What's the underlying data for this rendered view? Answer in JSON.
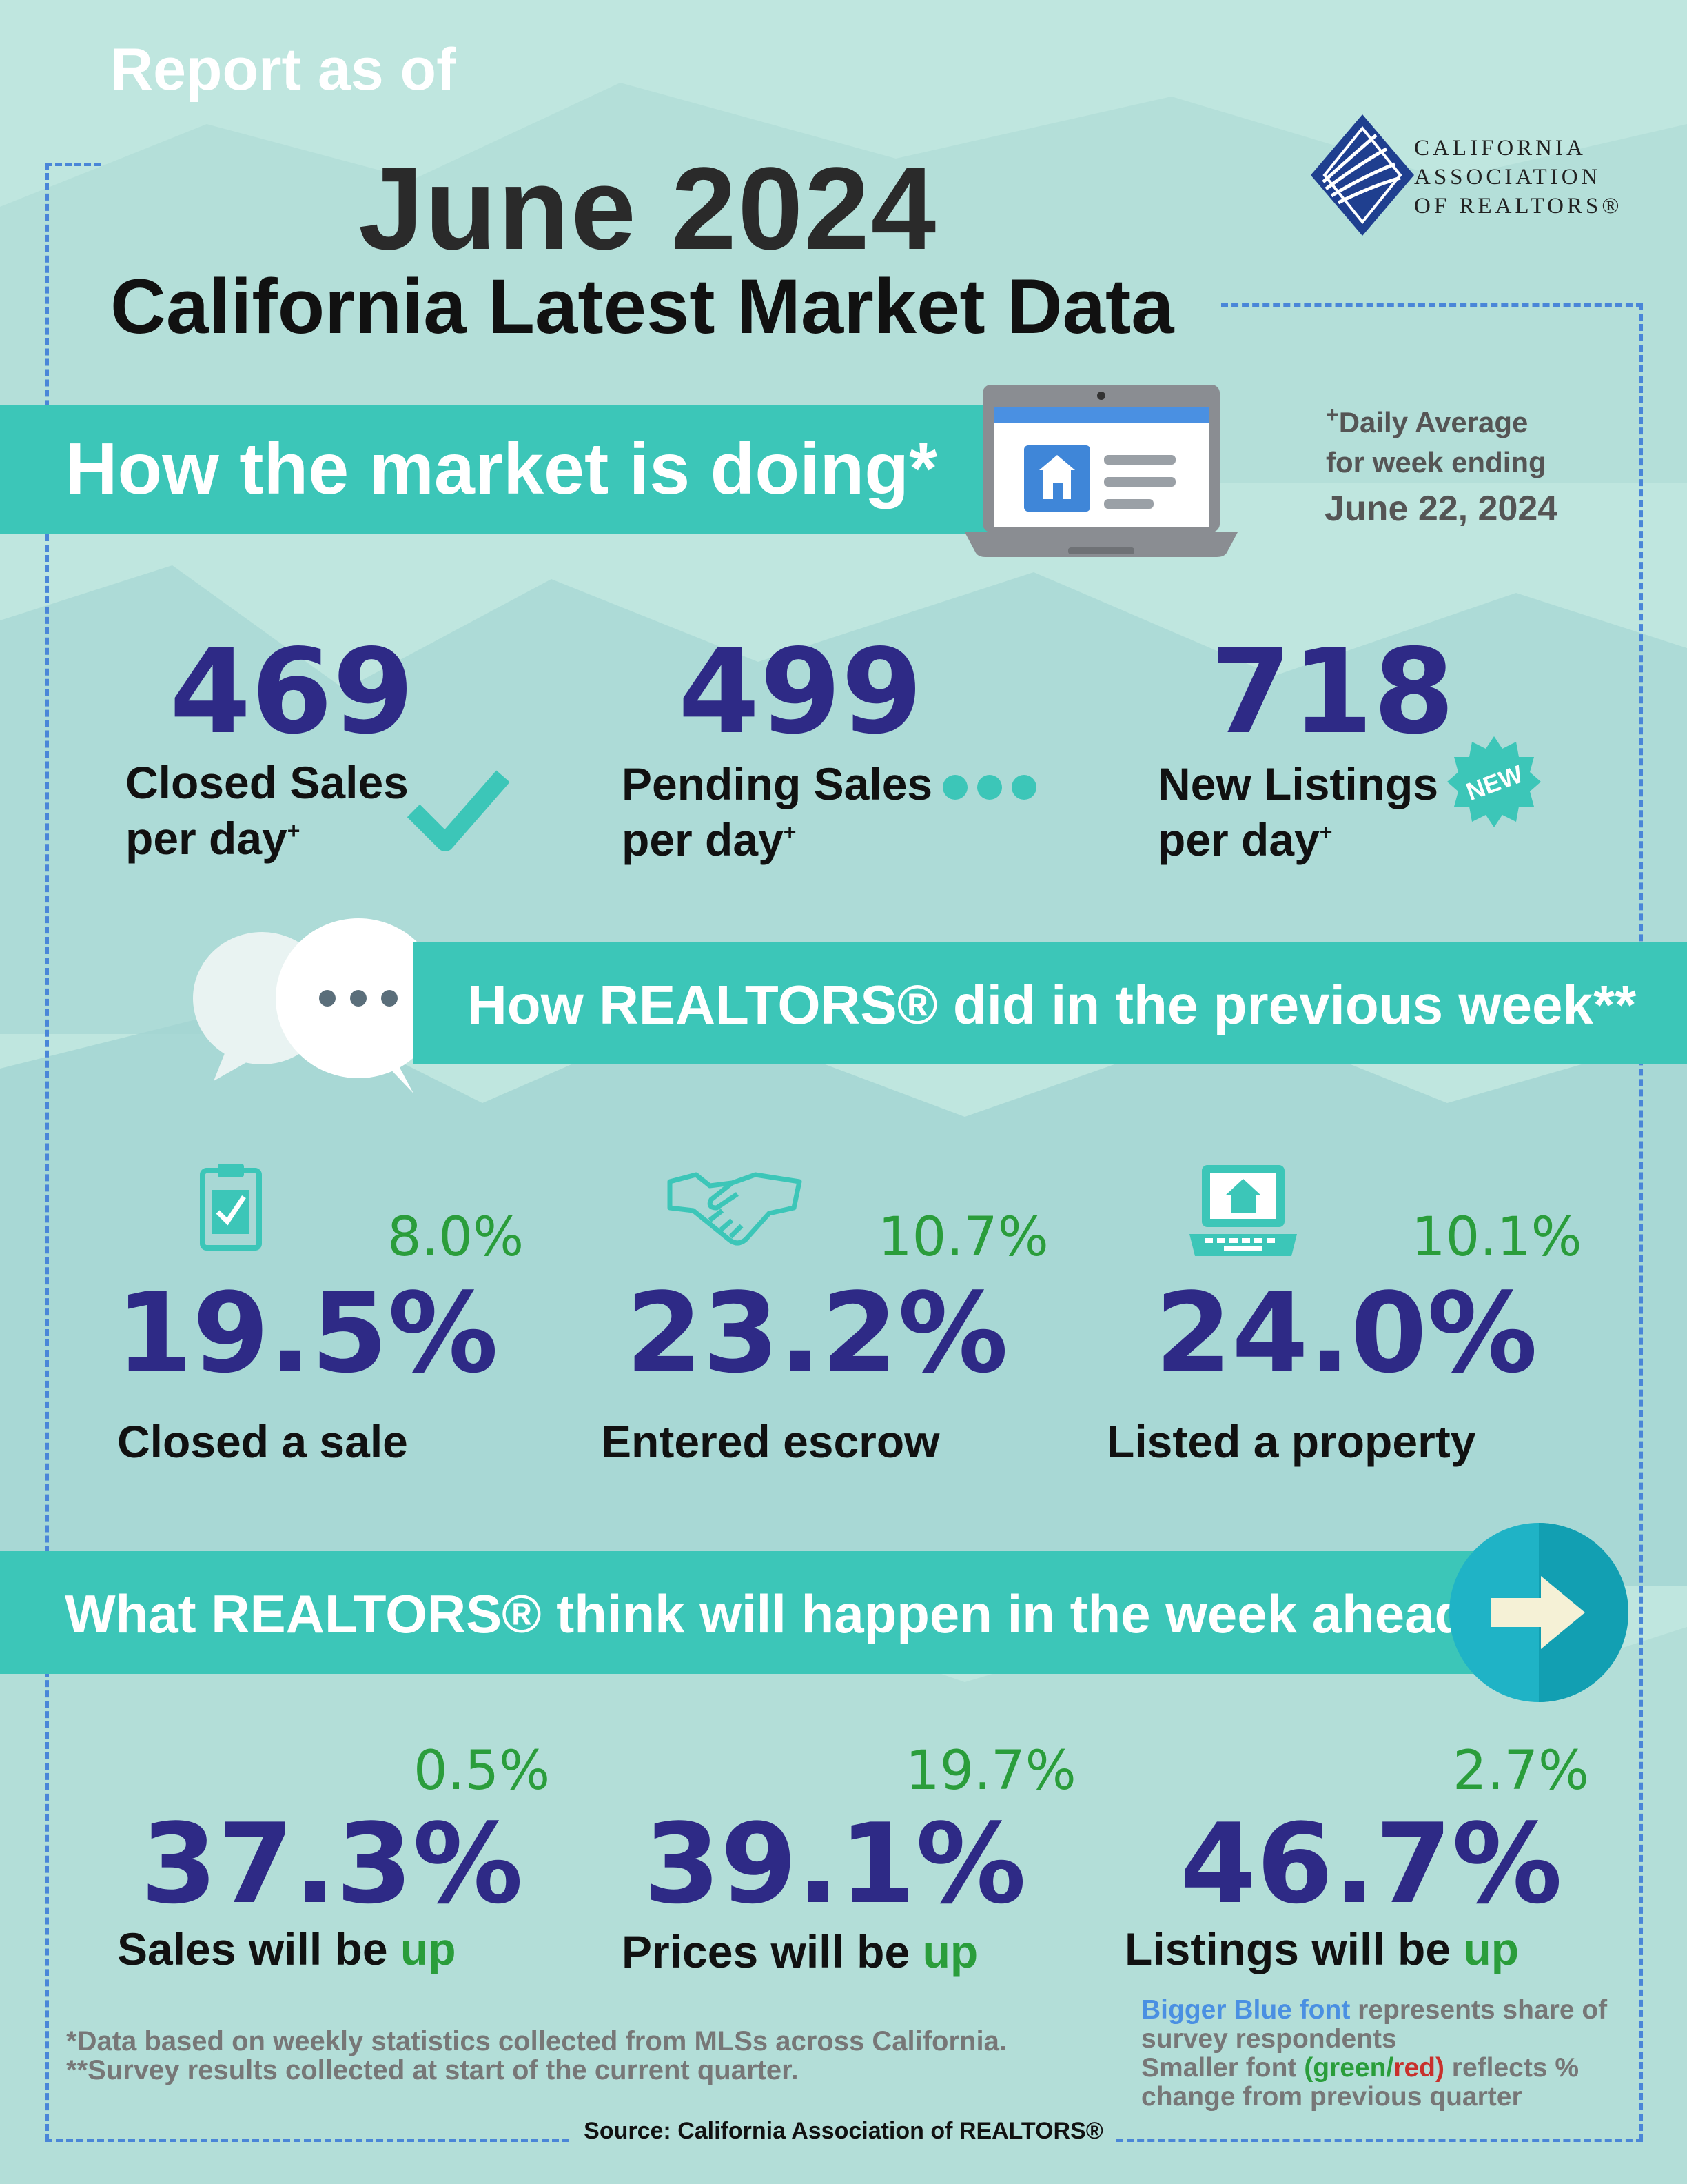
{
  "header": {
    "report_as_of": "Report as of",
    "month_year": "June 2024",
    "title": "California Latest Market Data",
    "logo": [
      "CALIFORNIA",
      "ASSOCIATION",
      "OF REALTORS®"
    ]
  },
  "market": {
    "heading": "How the market is doing*",
    "note_line1": "Daily Average",
    "note_plus": "+",
    "note_line2": "for week ending",
    "note_date": "June 22, 2024",
    "stats": [
      {
        "value": "469",
        "line1": "Closed Sales",
        "line2": "per day",
        "icon": "checkmark-icon"
      },
      {
        "value": "499",
        "line1": "Pending Sales",
        "line2": "per day",
        "icon": "dots-icon"
      },
      {
        "value": "718",
        "line1": "New Listings",
        "line2": "per day",
        "icon": "new-badge-icon",
        "badge": "NEW"
      }
    ]
  },
  "previous_week": {
    "heading": "How REALTORS® did in the previous week**",
    "stats": [
      {
        "share": "19.5%",
        "change": "8.0%",
        "label": "Closed a sale",
        "icon": "clipboard-icon"
      },
      {
        "share": "23.2%",
        "change": "10.7%",
        "label": "Entered escrow",
        "icon": "handshake-icon"
      },
      {
        "share": "24.0%",
        "change": "10.1%",
        "label": "Listed a property",
        "icon": "laptop-house-icon"
      }
    ]
  },
  "week_ahead": {
    "heading": "What REALTORS® think will happen in the week ahead**",
    "stats": [
      {
        "share": "37.3%",
        "change": "0.5%",
        "label": "Sales will be",
        "dir": "up"
      },
      {
        "share": "39.1%",
        "change": "19.7%",
        "label": "Prices will be",
        "dir": "up"
      },
      {
        "share": "46.7%",
        "change": "2.7%",
        "label": "Listings will be",
        "dir": "up"
      }
    ]
  },
  "footer": {
    "note1": "*Data based on weekly statistics collected from MLSs across California.",
    "note2": "**Survey results collected at start of the current quarter.",
    "legend_blue": "Bigger Blue font",
    "legend_1": " represents share of",
    "legend_2": "survey respondents",
    "legend_3": "Smaller font ",
    "legend_paren_open": "(",
    "legend_green": "green",
    "legend_slash": "/",
    "legend_red": "red",
    "legend_paren_close": ")",
    "legend_4": " reflects %",
    "legend_5": "change from previous quarter",
    "source": "Source: California Association of REALTORS®"
  },
  "colors": {
    "band": "#3cc6b8",
    "number": "#2e2a86",
    "change": "#2a9d3b",
    "frame": "#4a86d8"
  }
}
